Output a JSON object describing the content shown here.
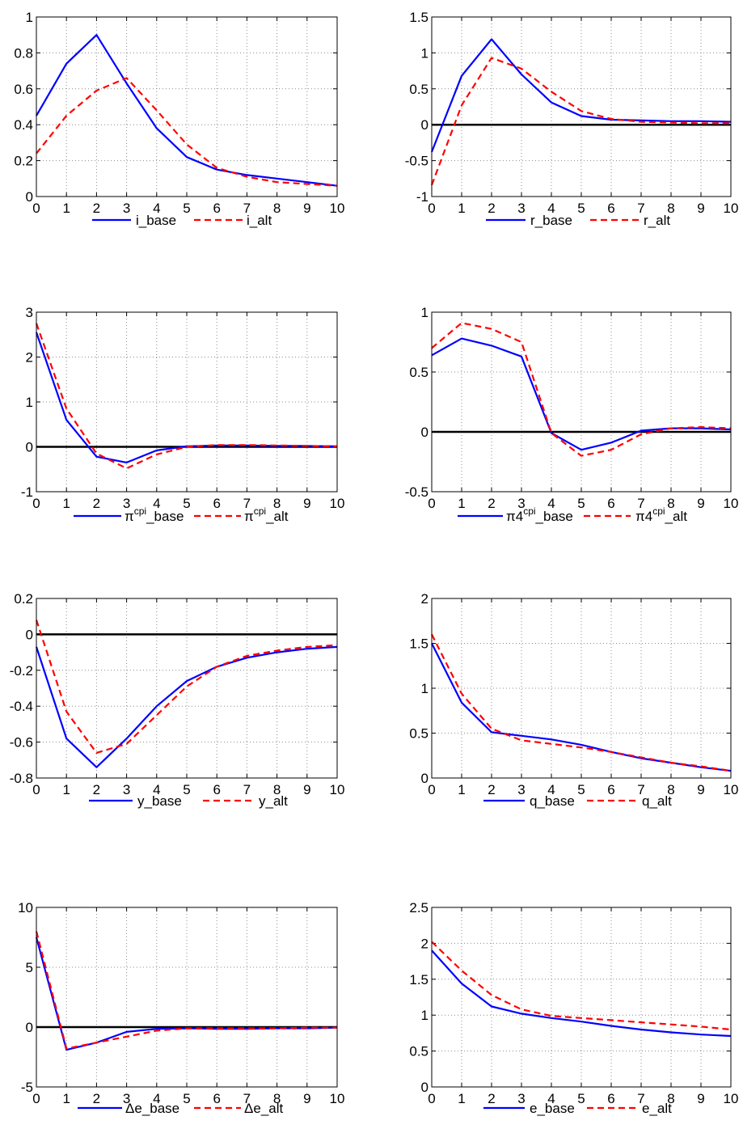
{
  "colors": {
    "base": "#0000ff",
    "alt": "#ff0000",
    "grid": "#8c8c8c",
    "zero": "#000000",
    "axes": "#000000"
  },
  "chart_data": [
    {
      "type": "line",
      "grid": true,
      "zero_line": false,
      "xlim": [
        0,
        10
      ],
      "ylim": [
        0,
        1
      ],
      "yticks": [
        "0",
        "0.2",
        "0.4",
        "0.6",
        "0.8",
        "1"
      ],
      "x": [
        0,
        1,
        2,
        3,
        4,
        5,
        6,
        7,
        8,
        9,
        10
      ],
      "legend": "bottom",
      "series": [
        {
          "name": "i_base",
          "style": "solid",
          "values": [
            0.45,
            0.74,
            0.9,
            0.63,
            0.38,
            0.22,
            0.15,
            0.12,
            0.1,
            0.08,
            0.06
          ]
        },
        {
          "name": "i_alt",
          "style": "dashed",
          "values": [
            0.24,
            0.45,
            0.59,
            0.66,
            0.48,
            0.29,
            0.16,
            0.11,
            0.08,
            0.07,
            0.06
          ]
        }
      ]
    },
    {
      "type": "line",
      "grid": true,
      "zero_line": true,
      "xlim": [
        0,
        10
      ],
      "ylim": [
        -1,
        1.5
      ],
      "yticks": [
        "-1",
        "-0.5",
        "0",
        "0.5",
        "1",
        "1.5"
      ],
      "x": [
        0,
        1,
        2,
        3,
        4,
        5,
        6,
        7,
        8,
        9,
        10
      ],
      "legend": "bottom",
      "series": [
        {
          "name": "r_base",
          "style": "solid",
          "values": [
            -0.38,
            0.68,
            1.19,
            0.7,
            0.31,
            0.12,
            0.07,
            0.06,
            0.05,
            0.05,
            0.04
          ]
        },
        {
          "name": "r_alt",
          "style": "dashed",
          "values": [
            -0.84,
            0.27,
            0.93,
            0.78,
            0.46,
            0.19,
            0.08,
            0.04,
            0.03,
            0.02,
            0.02
          ]
        }
      ]
    },
    {
      "type": "line",
      "grid": true,
      "zero_line": true,
      "xlim": [
        0,
        10
      ],
      "ylim": [
        -1,
        3
      ],
      "yticks": [
        "-1",
        "0",
        "1",
        "2",
        "3"
      ],
      "x": [
        0,
        1,
        2,
        3,
        4,
        5,
        6,
        7,
        8,
        9,
        10
      ],
      "legend": "bottom",
      "series": [
        {
          "name_sym": "π",
          "name_sup": "cpi",
          "name_rest": "_base",
          "style": "solid",
          "values": [
            2.55,
            0.6,
            -0.22,
            -0.35,
            -0.08,
            0.01,
            0.03,
            0.03,
            0.02,
            0.02,
            0.01
          ]
        },
        {
          "name_sym": "π",
          "name_sup": "cpi",
          "name_rest": "_alt",
          "style": "dashed",
          "values": [
            2.75,
            0.85,
            -0.15,
            -0.48,
            -0.17,
            0.0,
            0.04,
            0.04,
            0.03,
            0.02,
            0.01
          ]
        }
      ]
    },
    {
      "type": "line",
      "grid": true,
      "zero_line": true,
      "xlim": [
        0,
        10
      ],
      "ylim": [
        -0.5,
        1
      ],
      "yticks": [
        "-0.5",
        "0",
        "0.5",
        "1"
      ],
      "x": [
        0,
        1,
        2,
        3,
        4,
        5,
        6,
        7,
        8,
        9,
        10
      ],
      "legend": "bottom",
      "series": [
        {
          "name_sym": "π4",
          "name_sup": "cpi",
          "name_rest": "_base",
          "style": "solid",
          "values": [
            0.64,
            0.78,
            0.72,
            0.63,
            -0.01,
            -0.15,
            -0.09,
            0.01,
            0.03,
            0.03,
            0.02
          ]
        },
        {
          "name_sym": "π4",
          "name_sup": "cpi",
          "name_rest": "_alt",
          "style": "dashed",
          "values": [
            0.7,
            0.91,
            0.86,
            0.75,
            -0.01,
            -0.2,
            -0.15,
            -0.02,
            0.03,
            0.04,
            0.03
          ]
        }
      ]
    },
    {
      "type": "line",
      "grid": true,
      "zero_line": true,
      "xlim": [
        0,
        10
      ],
      "ylim": [
        -0.8,
        0.2
      ],
      "yticks": [
        "-0.8",
        "-0.6",
        "-0.4",
        "-0.2",
        "0",
        "0.2"
      ],
      "x": [
        0,
        1,
        2,
        3,
        4,
        5,
        6,
        7,
        8,
        9,
        10
      ],
      "legend": "bottom",
      "series": [
        {
          "name": "y_base",
          "style": "solid",
          "values": [
            -0.07,
            -0.58,
            -0.74,
            -0.58,
            -0.4,
            -0.26,
            -0.18,
            -0.13,
            -0.1,
            -0.08,
            -0.07
          ]
        },
        {
          "name": "y_alt",
          "style": "dashed",
          "values": [
            0.08,
            -0.43,
            -0.66,
            -0.61,
            -0.45,
            -0.29,
            -0.18,
            -0.12,
            -0.09,
            -0.07,
            -0.06
          ]
        }
      ]
    },
    {
      "type": "line",
      "grid": true,
      "zero_line": false,
      "xlim": [
        0,
        10
      ],
      "ylim": [
        0,
        2
      ],
      "yticks": [
        "0",
        "0.5",
        "1",
        "1.5",
        "2"
      ],
      "x": [
        0,
        1,
        2,
        3,
        4,
        5,
        6,
        7,
        8,
        9,
        10
      ],
      "legend": "bottom",
      "series": [
        {
          "name": "q_base",
          "style": "solid",
          "values": [
            1.5,
            0.84,
            0.51,
            0.47,
            0.43,
            0.37,
            0.29,
            0.22,
            0.17,
            0.12,
            0.08
          ]
        },
        {
          "name": "q_alt",
          "style": "dashed",
          "values": [
            1.6,
            0.94,
            0.55,
            0.42,
            0.38,
            0.34,
            0.29,
            0.23,
            0.17,
            0.13,
            0.08
          ]
        }
      ]
    },
    {
      "type": "line",
      "grid": true,
      "zero_line": true,
      "xlim": [
        0,
        10
      ],
      "ylim": [
        -5,
        10
      ],
      "yticks": [
        "-5",
        "0",
        "5",
        "10"
      ],
      "x": [
        0,
        1,
        2,
        3,
        4,
        5,
        6,
        7,
        8,
        9,
        10
      ],
      "legend": "bottom",
      "series": [
        {
          "name_sym": "Δ",
          "name_rest": "e_base",
          "style": "solid",
          "values": [
            7.5,
            -1.9,
            -1.3,
            -0.4,
            -0.15,
            -0.1,
            -0.15,
            -0.15,
            -0.1,
            -0.1,
            -0.05
          ]
        },
        {
          "name_sym": "Δ",
          "name_rest": "e_alt",
          "style": "dashed",
          "values": [
            8.0,
            -1.8,
            -1.3,
            -0.8,
            -0.3,
            -0.1,
            -0.1,
            -0.1,
            -0.1,
            -0.05,
            -0.05
          ]
        }
      ]
    },
    {
      "type": "line",
      "grid": true,
      "zero_line": false,
      "xlim": [
        0,
        10
      ],
      "ylim": [
        0,
        2.5
      ],
      "yticks": [
        "0",
        "0.5",
        "1",
        "1.5",
        "2",
        "2.5"
      ],
      "x": [
        0,
        1,
        2,
        3,
        4,
        5,
        6,
        7,
        8,
        9,
        10
      ],
      "legend": "bottom",
      "series": [
        {
          "name": "e_base",
          "style": "solid",
          "values": [
            1.9,
            1.44,
            1.12,
            1.02,
            0.96,
            0.91,
            0.85,
            0.8,
            0.76,
            0.73,
            0.71
          ]
        },
        {
          "name": "e_alt",
          "style": "dashed",
          "values": [
            2.02,
            1.62,
            1.28,
            1.08,
            0.99,
            0.96,
            0.93,
            0.9,
            0.87,
            0.84,
            0.8
          ]
        }
      ]
    }
  ]
}
